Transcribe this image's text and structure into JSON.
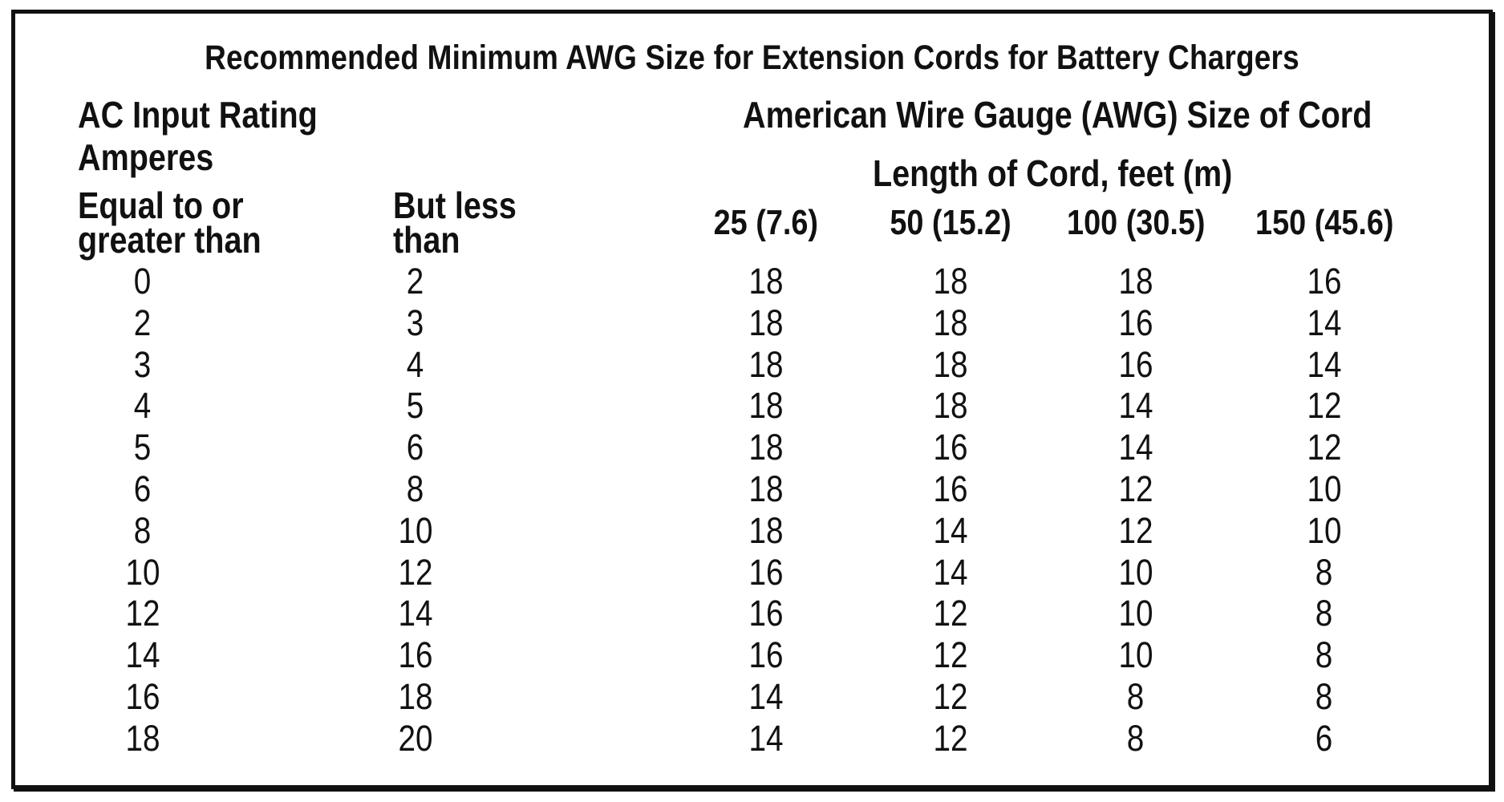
{
  "title": "Recommended Minimum AWG Size for Extension Cords for Battery Chargers",
  "header": {
    "ac_input_line1": "AC Input Rating",
    "ac_input_line2": "Amperes",
    "equal_line1": "Equal to or",
    "equal_line2": "greater than",
    "but_less_line1": "But less",
    "but_less_line2": "than",
    "awg_title": "American Wire Gauge (AWG) Size of Cord",
    "length_title": "Length of Cord, feet (m)",
    "length_columns": [
      "25 (7.6)",
      "50 (15.2)",
      "100 (30.5)",
      "150 (45.6)"
    ]
  },
  "rows": [
    [
      "0",
      "2",
      "18",
      "18",
      "18",
      "16"
    ],
    [
      "2",
      "3",
      "18",
      "18",
      "16",
      "14"
    ],
    [
      "3",
      "4",
      "18",
      "18",
      "16",
      "14"
    ],
    [
      "4",
      "5",
      "18",
      "18",
      "14",
      "12"
    ],
    [
      "5",
      "6",
      "18",
      "16",
      "14",
      "12"
    ],
    [
      "6",
      "8",
      "18",
      "16",
      "12",
      "10"
    ],
    [
      "8",
      "10",
      "18",
      "14",
      "12",
      "10"
    ],
    [
      "10",
      "12",
      "16",
      "14",
      "10",
      "8"
    ],
    [
      "12",
      "14",
      "16",
      "12",
      "10",
      "8"
    ],
    [
      "14",
      "16",
      "16",
      "12",
      "10",
      "8"
    ],
    [
      "16",
      "18",
      "14",
      "12",
      "8",
      "8"
    ],
    [
      "18",
      "20",
      "14",
      "12",
      "8",
      "6"
    ]
  ]
}
